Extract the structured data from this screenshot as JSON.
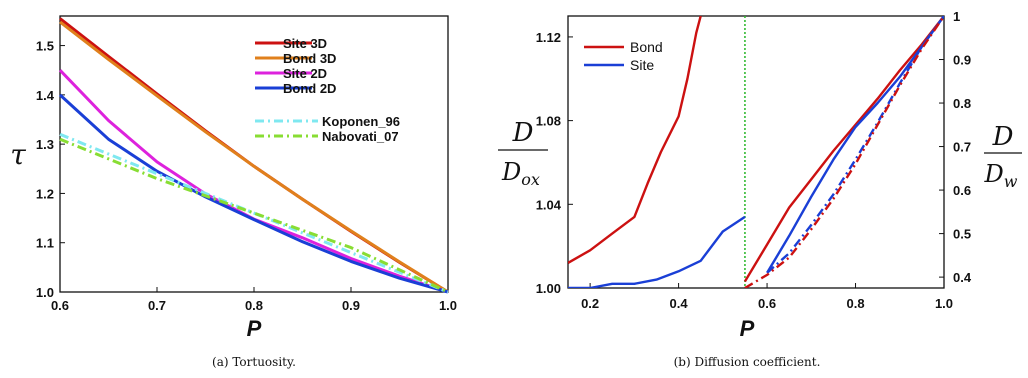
{
  "chart_data": [
    {
      "type": "line",
      "caption": "(a) Tortuosity.",
      "xlabel": "P",
      "ylabel": "τ",
      "xlim": [
        0.6,
        1.0
      ],
      "ylim": [
        1.0,
        1.56
      ],
      "xticks": [
        "0.6",
        "0.7",
        "0.8",
        "0.9",
        "1.0"
      ],
      "yticks": [
        "1.0",
        "1.1",
        "1.2",
        "1.3",
        "1.4",
        "1.5"
      ],
      "legend_position": "top-right",
      "series": [
        {
          "name": "Site 3D",
          "color": "#cc1111",
          "style": "solid",
          "x": [
            0.6,
            0.65,
            0.7,
            0.75,
            0.8,
            0.85,
            0.9,
            0.95,
            1.0
          ],
          "y": [
            1.555,
            1.478,
            1.402,
            1.327,
            1.255,
            1.188,
            1.123,
            1.06,
            1.0
          ]
        },
        {
          "name": "Bond 3D",
          "color": "#e0801c",
          "style": "solid",
          "x": [
            0.6,
            0.65,
            0.7,
            0.75,
            0.8,
            0.85,
            0.9,
            0.95,
            1.0
          ],
          "y": [
            1.548,
            1.472,
            1.398,
            1.325,
            1.255,
            1.188,
            1.124,
            1.061,
            1.0
          ]
        },
        {
          "name": "Site 2D",
          "color": "#dd22dd",
          "style": "solid",
          "x": [
            0.6,
            0.65,
            0.7,
            0.75,
            0.8,
            0.85,
            0.9,
            0.95,
            1.0
          ],
          "y": [
            1.45,
            1.348,
            1.264,
            1.199,
            1.148,
            1.11,
            1.068,
            1.032,
            1.0
          ]
        },
        {
          "name": "Bond 2D",
          "color": "#1a3fd6",
          "style": "solid",
          "x": [
            0.6,
            0.65,
            0.7,
            0.75,
            0.8,
            0.85,
            0.9,
            0.95,
            1.0
          ],
          "y": [
            1.4,
            1.31,
            1.245,
            1.193,
            1.147,
            1.102,
            1.062,
            1.028,
            1.0
          ]
        },
        {
          "name": "Koponen_96",
          "color": "#7fe8f0",
          "style": "dashdot",
          "x": [
            0.6,
            0.7,
            0.8,
            0.9,
            1.0
          ],
          "y": [
            1.32,
            1.24,
            1.16,
            1.08,
            1.0
          ]
        },
        {
          "name": "Nabovati_07",
          "color": "#88dd33",
          "style": "dashdot",
          "x": [
            0.6,
            0.7,
            0.8,
            0.9,
            1.0
          ],
          "y": [
            1.31,
            1.23,
            1.16,
            1.09,
            1.0
          ]
        }
      ]
    },
    {
      "type": "line",
      "caption": "(b) Diffusion coefficient.",
      "xlabel": "P",
      "ylabel_left": {
        "num": "D",
        "den": "D_ox",
        "den_main": "D",
        "den_sub": "ox"
      },
      "ylabel_right": {
        "num": "D",
        "den": "D_w",
        "den_main": "D",
        "den_sub": "w"
      },
      "xlim": [
        0.15,
        1.0
      ],
      "ylim_left": [
        1.0,
        1.13
      ],
      "ylim_right": [
        0.375,
        1.0
      ],
      "xticks": [
        "0.2",
        "0.4",
        "0.6",
        "0.8",
        "1.0"
      ],
      "yticks_left": [
        "1.00",
        "1.04",
        "1.08",
        "1.12"
      ],
      "yticks_right": [
        "0.4",
        "0.5",
        "0.6",
        "0.7",
        "0.8",
        "0.9",
        "1"
      ],
      "percolation_threshold_x": 0.55,
      "legend_position": "top-left",
      "series": [
        {
          "name": "Bond",
          "color": "#cc1111",
          "style": "solid",
          "axis": "left",
          "x": [
            0.15,
            0.2,
            0.25,
            0.3,
            0.33,
            0.36,
            0.4,
            0.42,
            0.44,
            0.45
          ],
          "y": [
            1.012,
            1.018,
            1.026,
            1.034,
            1.05,
            1.065,
            1.082,
            1.1,
            1.122,
            1.13
          ]
        },
        {
          "name": "Site",
          "color": "#1a3fd6",
          "style": "solid",
          "axis": "left",
          "x": [
            0.15,
            0.2,
            0.25,
            0.3,
            0.35,
            0.4,
            0.45,
            0.5,
            0.55
          ],
          "y": [
            1.0,
            1.0,
            1.002,
            1.002,
            1.004,
            1.008,
            1.013,
            1.027,
            1.034
          ]
        },
        {
          "name": "",
          "color": "#cc1111",
          "style": "solid",
          "axis": "right",
          "x": [
            0.55,
            0.6,
            0.65,
            0.7,
            0.75,
            0.8,
            0.85,
            0.9,
            0.95,
            1.0
          ],
          "y": [
            0.39,
            0.475,
            0.56,
            0.625,
            0.69,
            0.75,
            0.81,
            0.875,
            0.935,
            1.0
          ]
        },
        {
          "name": "",
          "color": "#1a3fd6",
          "style": "solid",
          "axis": "right",
          "x": [
            0.6,
            0.65,
            0.7,
            0.75,
            0.8,
            0.85,
            0.9,
            0.95,
            1.0
          ],
          "y": [
            0.41,
            0.495,
            0.585,
            0.67,
            0.745,
            0.8,
            0.86,
            0.93,
            1.0
          ]
        },
        {
          "name": "",
          "color": "#1a3fd6",
          "style": "dashdot",
          "axis": "right",
          "x": [
            0.6,
            0.65,
            0.7,
            0.75,
            0.8,
            0.85,
            0.9,
            0.95,
            1.0
          ],
          "y": [
            0.41,
            0.455,
            0.52,
            0.59,
            0.67,
            0.755,
            0.845,
            0.93,
            1.0
          ]
        },
        {
          "name": "",
          "color": "#cc1111",
          "style": "dashdot",
          "axis": "right",
          "x": [
            0.55,
            0.6,
            0.65,
            0.7,
            0.75,
            0.8,
            0.85,
            0.9,
            0.95,
            1.0
          ],
          "y": [
            0.375,
            0.405,
            0.445,
            0.51,
            0.58,
            0.66,
            0.75,
            0.84,
            0.925,
            1.0
          ]
        }
      ]
    }
  ]
}
